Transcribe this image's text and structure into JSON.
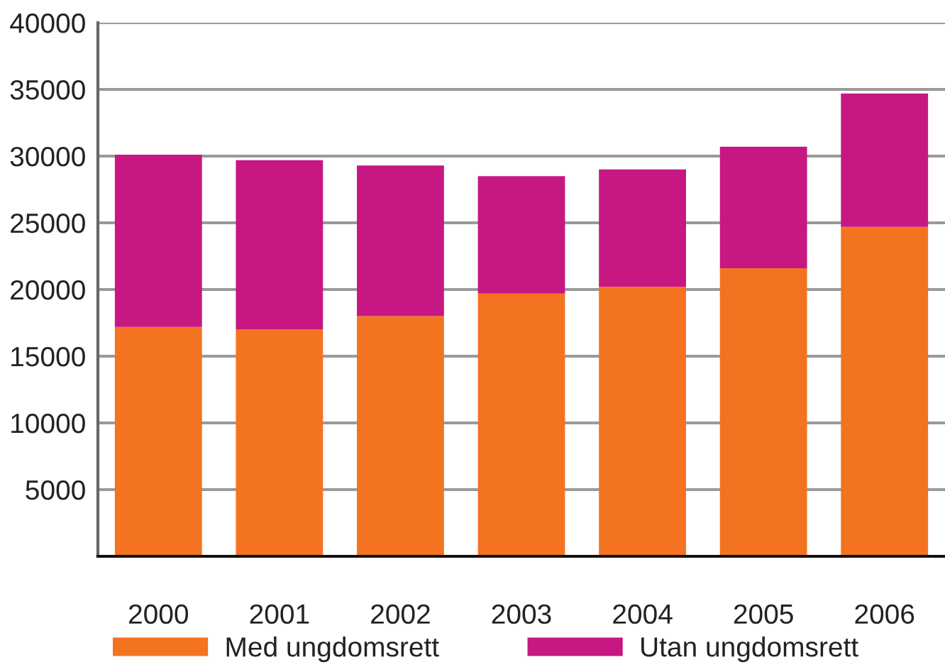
{
  "chart_data": {
    "type": "bar",
    "stacked": true,
    "categories": [
      "2000",
      "2001",
      "2002",
      "2003",
      "2004",
      "2005",
      "2006"
    ],
    "series": [
      {
        "name": "Med ungdomsrett",
        "color": "#f37321",
        "values": [
          17200,
          17000,
          18000,
          19700,
          20200,
          21600,
          24700
        ]
      },
      {
        "name": "Utan ungdomsrett",
        "color": "#c71782",
        "values": [
          12900,
          12700,
          11300,
          8800,
          8800,
          9100,
          10000
        ]
      }
    ],
    "ylim": [
      0,
      40000
    ],
    "yticks": [
      5000,
      10000,
      15000,
      20000,
      25000,
      30000,
      35000,
      40000
    ],
    "grid": "y",
    "legend": "bottom"
  }
}
